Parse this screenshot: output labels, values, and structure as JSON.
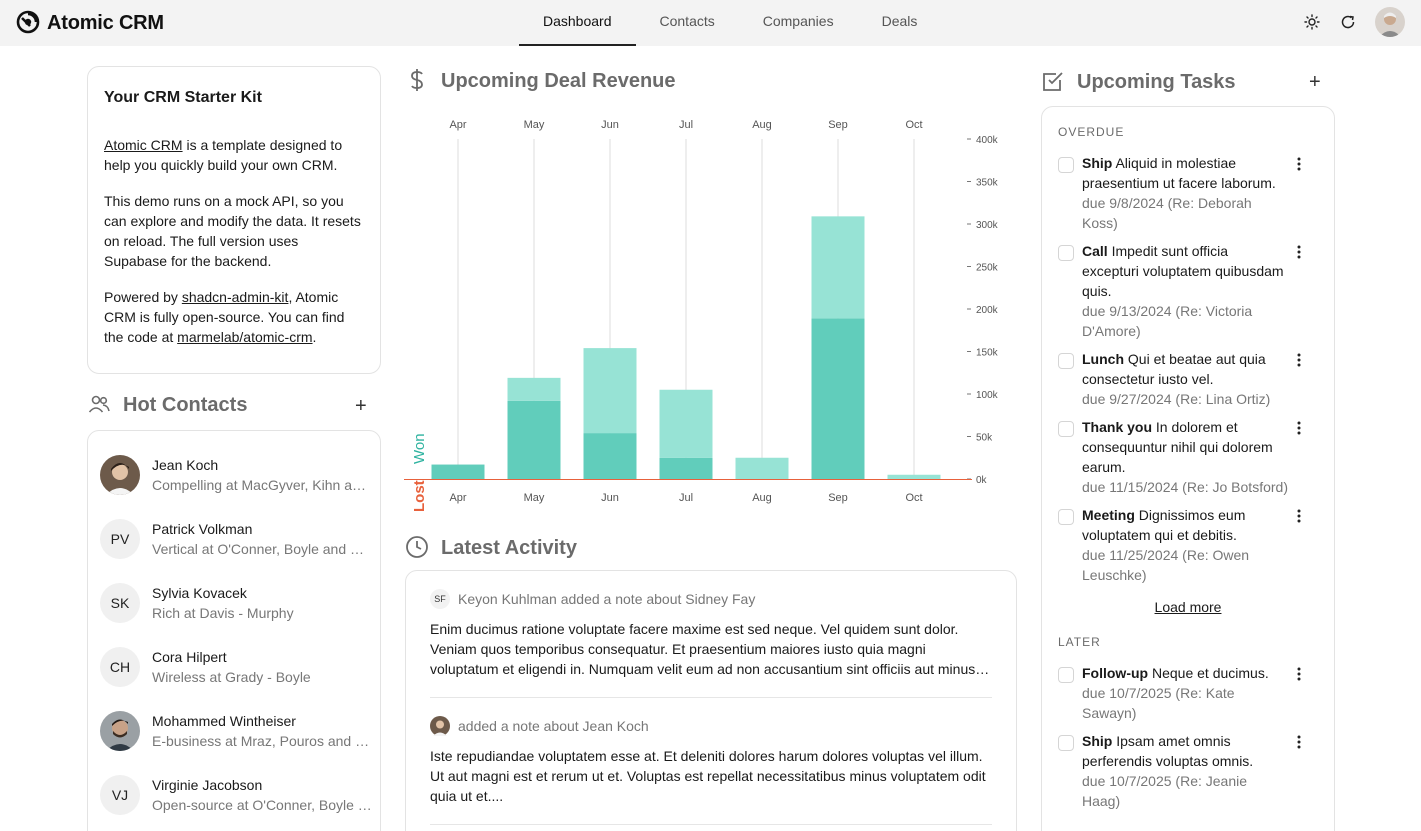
{
  "app": {
    "title": "Atomic CRM"
  },
  "nav": {
    "tabs": [
      {
        "label": "Dashboard",
        "active": true
      },
      {
        "label": "Contacts",
        "active": false
      },
      {
        "label": "Companies",
        "active": false
      },
      {
        "label": "Deals",
        "active": false
      }
    ]
  },
  "starter": {
    "title": "Your CRM Starter Kit",
    "p1_link": "Atomic CRM",
    "p1_rest": " is a template designed to help you quickly build your own CRM.",
    "p2": "This demo runs on a mock API, so you can explore and modify the data. It resets on reload. The full version uses Supabase for the backend.",
    "p3_a": "Powered by ",
    "p3_link1": "shadcn-admin-kit",
    "p3_b": ", Atomic CRM is fully open-source. You can find the code at ",
    "p3_link2": "marmelab/atomic-crm",
    "p3_c": "."
  },
  "hot_contacts": {
    "title": "Hot Contacts",
    "items": [
      {
        "initials": "",
        "photo": true,
        "name": "Jean Koch",
        "sub": "Compelling at MacGyver, Kihn and Gleason"
      },
      {
        "initials": "PV",
        "photo": false,
        "name": "Patrick Volkman",
        "sub": "Vertical at O'Conner, Boyle and Schmitt"
      },
      {
        "initials": "SK",
        "photo": false,
        "name": "Sylvia Kovacek",
        "sub": "Rich at Davis - Murphy"
      },
      {
        "initials": "CH",
        "photo": false,
        "name": "Cora Hilpert",
        "sub": "Wireless at Grady - Boyle"
      },
      {
        "initials": "",
        "photo": true,
        "name": "Mohammed Wintheiser",
        "sub": "E-business at Mraz, Pouros and Hettinger"
      },
      {
        "initials": "VJ",
        "photo": false,
        "name": "Virginie Jacobson",
        "sub": "Open-source at O'Conner, Boyle and Schmitt"
      }
    ]
  },
  "revenue": {
    "title": "Upcoming Deal Revenue"
  },
  "chart_data": {
    "type": "bar",
    "stacked": true,
    "categories": [
      "Apr",
      "May",
      "Jun",
      "Jul",
      "Aug",
      "Sep",
      "Oct"
    ],
    "series": [
      {
        "name": "Won",
        "values": [
          17000,
          92000,
          54000,
          25000,
          0,
          189000,
          0
        ]
      },
      {
        "name": "Pending",
        "values": [
          0,
          27000,
          100000,
          80000,
          25000,
          120000,
          5000
        ]
      }
    ],
    "yticks": [
      "0k",
      "50k",
      "100k",
      "150k",
      "200k",
      "250k",
      "300k",
      "350k",
      "400k"
    ],
    "ylim": [
      0,
      400000
    ],
    "left_labels": {
      "won": "Won",
      "lost": "Lost"
    },
    "colors": {
      "won": "#61cdbb",
      "pending": "#97e3d5",
      "lost": "#e8613c",
      "won_label": "#2fb3a0"
    },
    "grid": true
  },
  "activity": {
    "title": "Latest Activity",
    "items": [
      {
        "badge": "SF",
        "head": "Keyon Kuhlman added a note about Sidney Fay",
        "body": "Enim ducimus ratione voluptate facere maxime est sed neque. Vel quidem sunt dolor. Veniam quos temporibus consequatur. Et praesentium maiores iusto quia magni voluptatum et eligendi in. Numquam velit eum ad non accusantium sint officiis aut minus quae."
      },
      {
        "badge": "",
        "head": "added a note about Jean Koch",
        "body": "Iste repudiandae voluptatem esse at. Et deleniti dolores harum dolores voluptas vel illum. Ut aut magni est et rerum ut et. Voluptas est repellat necessitatibus minus voluptatem odit quia ut et...."
      }
    ]
  },
  "tasks": {
    "title": "Upcoming Tasks",
    "overdue_label": "OVERDUE",
    "later_label": "LATER",
    "load_more": "Load more",
    "overdue": [
      {
        "type": "Ship",
        "text": " Aliquid in molestiae praesentium ut facere laborum.",
        "due": "due 9/8/2024 (Re: Deborah Koss)"
      },
      {
        "type": "Call",
        "text": " Impedit sunt officia excepturi voluptatem quibusdam quis.",
        "due": "due 9/13/2024 (Re: Victoria D'Amore)"
      },
      {
        "type": "Lunch",
        "text": " Qui et beatae aut quia consectetur iusto vel.",
        "due": "due 9/27/2024 (Re: Lina Ortiz)"
      },
      {
        "type": "Thank you",
        "text": " In dolorem et consequuntur nihil qui dolorem earum.",
        "due": "due 11/15/2024 (Re: Jo Botsford)"
      },
      {
        "type": "Meeting",
        "text": " Dignissimos eum voluptatem qui et debitis.",
        "due": "due 11/25/2024 (Re: Owen Leuschke)"
      }
    ],
    "later": [
      {
        "type": "Follow-up",
        "text": " Neque et ducimus.",
        "due": "due 10/7/2025 (Re: Kate Sawayn)"
      },
      {
        "type": "Ship",
        "text": " Ipsam amet omnis perferendis voluptas omnis.",
        "due": "due 10/7/2025 (Re: Jeanie Haag)"
      }
    ]
  }
}
